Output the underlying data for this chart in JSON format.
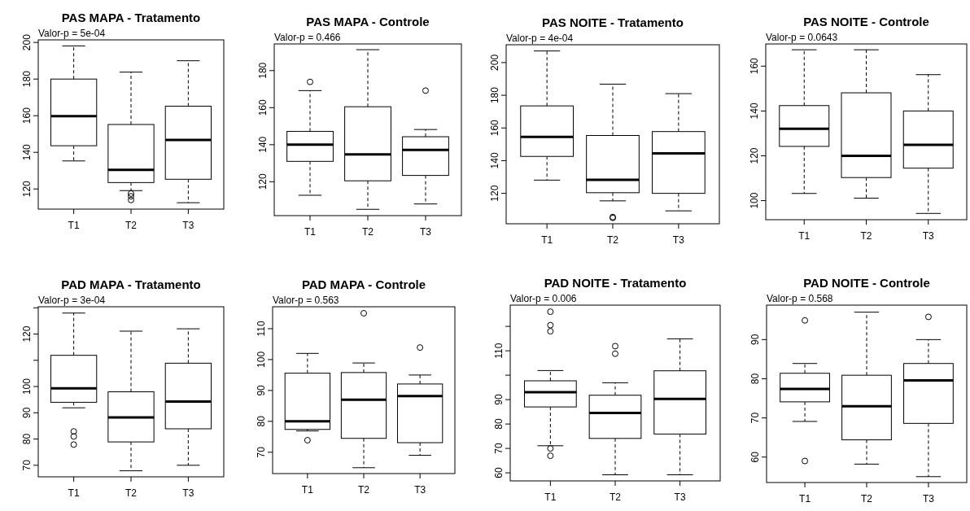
{
  "chart_data": [
    {
      "type": "box",
      "title": "PAS MAPA - Tratamento",
      "subtitle": "Valor-p = 5e-04",
      "categories": [
        "T1",
        "T2",
        "T3"
      ],
      "ylim": [
        109,
        201.4
      ],
      "yticks": [
        120,
        140,
        160,
        180,
        200
      ],
      "boxes": [
        {
          "low": 135.3,
          "q1": 143.6,
          "median": 159.7,
          "q3": 180,
          "high": 198.1
        },
        {
          "low": 119.1,
          "q1": 123.5,
          "median": 130.4,
          "q3": 155.2,
          "high": 183.8,
          "outliers": [
            117.5,
            116,
            114
          ]
        },
        {
          "low": 112.5,
          "q1": 125.3,
          "median": 146.8,
          "q3": 165.2,
          "high": 190
        }
      ]
    },
    {
      "type": "box",
      "title": "PAS MAPA - Controle",
      "subtitle": "Valor-p = 0.466",
      "categories": [
        "T1",
        "T2",
        "T3"
      ],
      "ylim": [
        101.7,
        194.4
      ],
      "yticks": [
        120,
        140,
        160,
        180
      ],
      "boxes": [
        {
          "low": 112.7,
          "q1": 131,
          "median": 140,
          "q3": 147.2,
          "high": 169.2,
          "outliers": [
            173.9
          ]
        },
        {
          "low": 105.1,
          "q1": 120.5,
          "median": 134.8,
          "q3": 160.5,
          "high": 191.3
        },
        {
          "low": 108,
          "q1": 123.4,
          "median": 137.2,
          "q3": 144.3,
          "high": 148.2,
          "outliers": [
            169.2
          ]
        }
      ]
    },
    {
      "type": "box",
      "title": "PAS NOITE - Tratamento",
      "subtitle": "Valor-p = 4e-04",
      "categories": [
        "T1",
        "T2",
        "T3"
      ],
      "ylim": [
        101.4,
        210.9
      ],
      "yticks": [
        120,
        140,
        160,
        180,
        200
      ],
      "boxes": [
        {
          "low": 128.1,
          "q1": 142.6,
          "median": 154.5,
          "q3": 173.5,
          "high": 207.1
        },
        {
          "low": 115.4,
          "q1": 120.4,
          "median": 128.3,
          "q3": 155.4,
          "high": 186.8,
          "outliers": [
            105.5,
            105
          ]
        },
        {
          "low": 109.3,
          "q1": 120,
          "median": 144.4,
          "q3": 157.8,
          "high": 181
        }
      ]
    },
    {
      "type": "box",
      "title": "PAS NOITE - Controle",
      "subtitle": "Valor-p = 0.0643",
      "categories": [
        "T1",
        "T2",
        "T3"
      ],
      "ylim": [
        91.5,
        169.9
      ],
      "yticks": [
        100,
        120,
        140,
        160
      ],
      "boxes": [
        {
          "low": 103.2,
          "q1": 124.2,
          "median": 132.1,
          "q3": 142.4,
          "high": 167.3
        },
        {
          "low": 101.1,
          "q1": 110.3,
          "median": 120,
          "q3": 148.1,
          "high": 167.3
        },
        {
          "low": 94.3,
          "q1": 114.5,
          "median": 124.9,
          "q3": 140,
          "high": 156.2
        }
      ]
    },
    {
      "type": "box",
      "title": "PAD MAPA - Tratamento",
      "subtitle": "Valor-p = 3e-04",
      "categories": [
        "T1",
        "T2",
        "T3"
      ],
      "ylim": [
        65.6,
        130.4
      ],
      "yticks": [
        70,
        80,
        90,
        100,
        {
          "value": 110,
          "label": null
        },
        120,
        {
          "value": 130,
          "label": null
        }
      ],
      "boxes": [
        {
          "low": 91.9,
          "q1": 94,
          "median": 99.3,
          "q3": 111.9,
          "high": 128,
          "outliers": [
            82.9,
            81,
            77.9
          ]
        },
        {
          "low": 67.9,
          "q1": 78.9,
          "median": 88.2,
          "q3": 98,
          "high": 121.1
        },
        {
          "low": 70,
          "q1": 83.9,
          "median": 94.3,
          "q3": 108.9,
          "high": 122
        }
      ]
    },
    {
      "type": "box",
      "title": "PAD MAPA - Controle",
      "subtitle": "Valor-p = 0.563",
      "categories": [
        "T1",
        "T2",
        "T3"
      ],
      "ylim": [
        63.1,
        117.1
      ],
      "yticks": [
        70,
        80,
        90,
        100,
        110
      ],
      "boxes": [
        {
          "low": 76.9,
          "q1": 77.4,
          "median": 80,
          "q3": 95.6,
          "high": 102,
          "outliers": [
            73.9
          ]
        },
        {
          "low": 65,
          "q1": 74.5,
          "median": 87,
          "q3": 95.8,
          "high": 98.9,
          "outliers": [
            115
          ]
        },
        {
          "low": 69,
          "q1": 73.1,
          "median": 88.2,
          "q3": 92.1,
          "high": 95,
          "outliers": [
            103.9
          ]
        }
      ]
    },
    {
      "type": "box",
      "title": "PAD NOITE - Tratamento",
      "subtitle": "Valor-p = 0.006",
      "categories": [
        "T1",
        "T2",
        "T3"
      ],
      "ylim": [
        56.7,
        128.7
      ],
      "yticks": [
        60,
        70,
        80,
        90,
        {
          "value": 100,
          "label": null
        },
        110,
        {
          "value": 120,
          "label": null
        }
      ],
      "boxes": [
        {
          "low": 71.1,
          "q1": 87,
          "median": 93,
          "q3": 97.7,
          "high": 101.9,
          "outliers": [
            126,
            120.5,
            118,
            70,
            67
          ]
        },
        {
          "low": 59.2,
          "q1": 74.1,
          "median": 84.5,
          "q3": 91.8,
          "high": 96.9,
          "outliers": [
            111.9,
            108.8
          ]
        },
        {
          "low": 59.2,
          "q1": 75.9,
          "median": 90.3,
          "q3": 101.8,
          "high": 114.9
        }
      ]
    },
    {
      "type": "box",
      "title": "PAD NOITE - Controle",
      "subtitle": "Valor-p = 0.568",
      "categories": [
        "T1",
        "T2",
        "T3"
      ],
      "ylim": [
        53.5,
        98.8
      ],
      "yticks": [
        60,
        70,
        80,
        90
      ],
      "boxes": [
        {
          "low": 69.1,
          "q1": 74.1,
          "median": 77.4,
          "q3": 81.4,
          "high": 83.9,
          "outliers": [
            94.9,
            59
          ]
        },
        {
          "low": 58.2,
          "q1": 64.4,
          "median": 73,
          "q3": 80.9,
          "high": 97
        },
        {
          "low": 55,
          "q1": 68.6,
          "median": 79.6,
          "q3": 83.9,
          "high": 90,
          "outliers": [
            95.8
          ]
        }
      ]
    }
  ]
}
